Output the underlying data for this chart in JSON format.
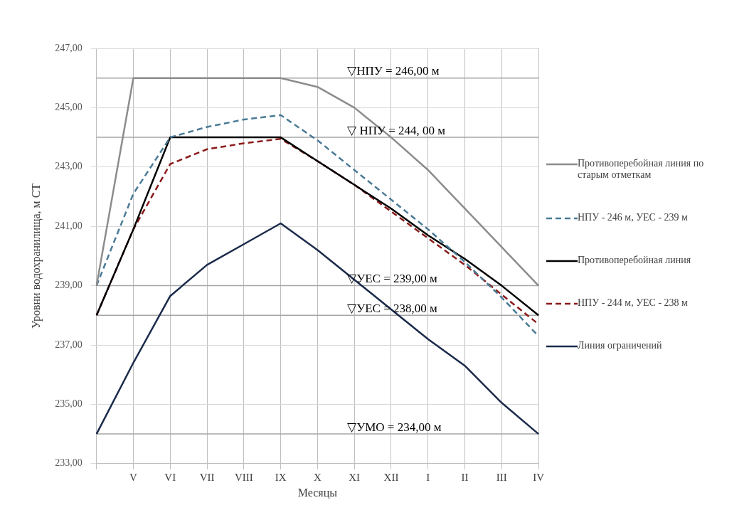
{
  "chart_data": {
    "type": "line",
    "xlabel": "Месяцы",
    "ylabel": "Уровни водохранилища, м СТ",
    "categories": [
      null,
      "V",
      "VI",
      "VII",
      "VIII",
      "IX",
      "X",
      "XI",
      "XII",
      "I",
      "II",
      "III",
      "IV"
    ],
    "ylim": [
      233,
      247
    ],
    "yticks": [
      {
        "value": 233,
        "label": "233,00"
      },
      {
        "value": 235,
        "label": "235,00"
      },
      {
        "value": 237,
        "label": "237,00"
      },
      {
        "value": 239,
        "label": "239,00"
      },
      {
        "value": 241,
        "label": "241,00"
      },
      {
        "value": 243,
        "label": "243,00"
      },
      {
        "value": 245,
        "label": "245,00"
      },
      {
        "value": 247,
        "label": "247,00"
      }
    ],
    "grid": true,
    "legend": "right",
    "marker": "none",
    "series": [
      {
        "name": "Противоперебойная линия по старым отметкам",
        "color": "#8c8c8c",
        "line_style": "solid",
        "values": [
          239,
          246,
          246,
          246,
          246,
          246,
          245.7,
          245,
          244,
          242.9,
          241.6,
          240.3,
          239
        ]
      },
      {
        "name": "НПУ - 246 м, УЕС - 239 м",
        "color": "#4a7a96",
        "line_style": "dashed",
        "values": [
          239,
          242.1,
          244,
          244.35,
          244.6,
          244.75,
          243.9,
          242.9,
          241.9,
          240.9,
          239.8,
          238.6,
          237.3
        ]
      },
      {
        "name": "Противоперебойная линия",
        "color": "#000000",
        "line_style": "solid",
        "values": [
          238,
          240.9,
          244,
          244,
          244,
          244,
          243.2,
          242.4,
          241.6,
          240.7,
          239.9,
          239,
          238
        ]
      },
      {
        "name": "НПУ - 244 м, УЕС - 238 м",
        "color": "#8b1a1a",
        "line_style": "dashed",
        "values": [
          238,
          240.9,
          243.1,
          243.6,
          243.8,
          243.95,
          243.2,
          242.4,
          241.5,
          240.6,
          239.7,
          238.7,
          237.7
        ]
      },
      {
        "name": "Линия ограничений",
        "color": "#1a2a4a",
        "line_style": "solid",
        "values": [
          234,
          236.4,
          238.65,
          239.7,
          240.4,
          241.1,
          240.2,
          239.2,
          238.2,
          237.2,
          236.3,
          235.05,
          234
        ]
      }
    ],
    "ref_lines": [
      {
        "axis": "y",
        "value": 246,
        "label": "▽НПУ = 246,00 м",
        "color": "#a6a6a6"
      },
      {
        "axis": "y",
        "value": 244,
        "label": "▽ НПУ = 244, 00 м",
        "color": "#a6a6a6"
      },
      {
        "axis": "y",
        "value": 239,
        "label": "▽УЕС = 239,00 м",
        "color": "#a6a6a6"
      },
      {
        "axis": "y",
        "value": 238,
        "label": "▽УЕС = 238,00 м",
        "color": "#a6a6a6"
      },
      {
        "axis": "y",
        "value": 234,
        "label": "▽УМО = 234,00 м",
        "color": "#a6a6a6"
      }
    ]
  }
}
